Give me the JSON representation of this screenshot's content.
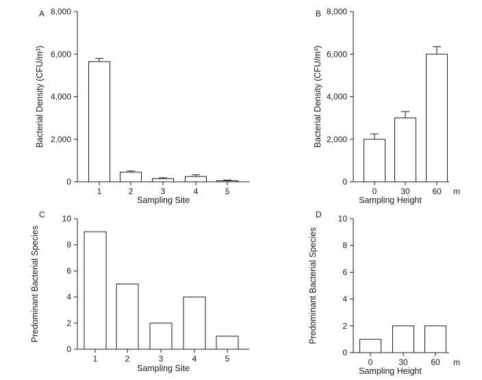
{
  "chart_data": [
    {
      "panel": "A",
      "type": "bar",
      "categories": [
        "1",
        "2",
        "3",
        "4",
        "5"
      ],
      "values": [
        5650,
        450,
        150,
        250,
        50
      ],
      "errors": [
        150,
        60,
        40,
        80,
        30
      ],
      "xlabel": "Sampling Site",
      "ylabel": "Bacterial Density (CFU/m³)",
      "ylim": [
        0,
        8000
      ],
      "yticks": [
        "0",
        "2,000",
        "4,000",
        "6,000",
        "8,000"
      ],
      "xunit": "",
      "grid": false
    },
    {
      "panel": "B",
      "type": "bar",
      "categories": [
        "0",
        "30",
        "60"
      ],
      "values": [
        2000,
        3000,
        6000
      ],
      "errors": [
        250,
        300,
        350
      ],
      "xlabel": "Sampling Height",
      "ylabel": "Bacterial Density (CFU/m³)",
      "ylim": [
        0,
        8000
      ],
      "yticks": [
        "0",
        "2,000",
        "4,000",
        "6,000",
        "8,000"
      ],
      "xunit": "m",
      "grid": false
    },
    {
      "panel": "C",
      "type": "bar",
      "categories": [
        "1",
        "2",
        "3",
        "4",
        "5"
      ],
      "values": [
        9,
        5,
        2,
        4,
        1
      ],
      "xlabel": "Sampling Site",
      "ylabel": "Predominant Bacterial Species",
      "ylim": [
        0,
        10
      ],
      "yticks": [
        "0",
        "2",
        "4",
        "6",
        "8",
        "10"
      ],
      "xunit": "",
      "grid": false
    },
    {
      "panel": "D",
      "type": "bar",
      "categories": [
        "0",
        "30",
        "60"
      ],
      "values": [
        1,
        2,
        2
      ],
      "xlabel": "Sampling Height",
      "ylabel": "Predominant Bacterial Species",
      "ylim": [
        0,
        10
      ],
      "yticks": [
        "0",
        "2",
        "4",
        "6",
        "8",
        "10"
      ],
      "xunit": "m",
      "grid": false
    }
  ]
}
